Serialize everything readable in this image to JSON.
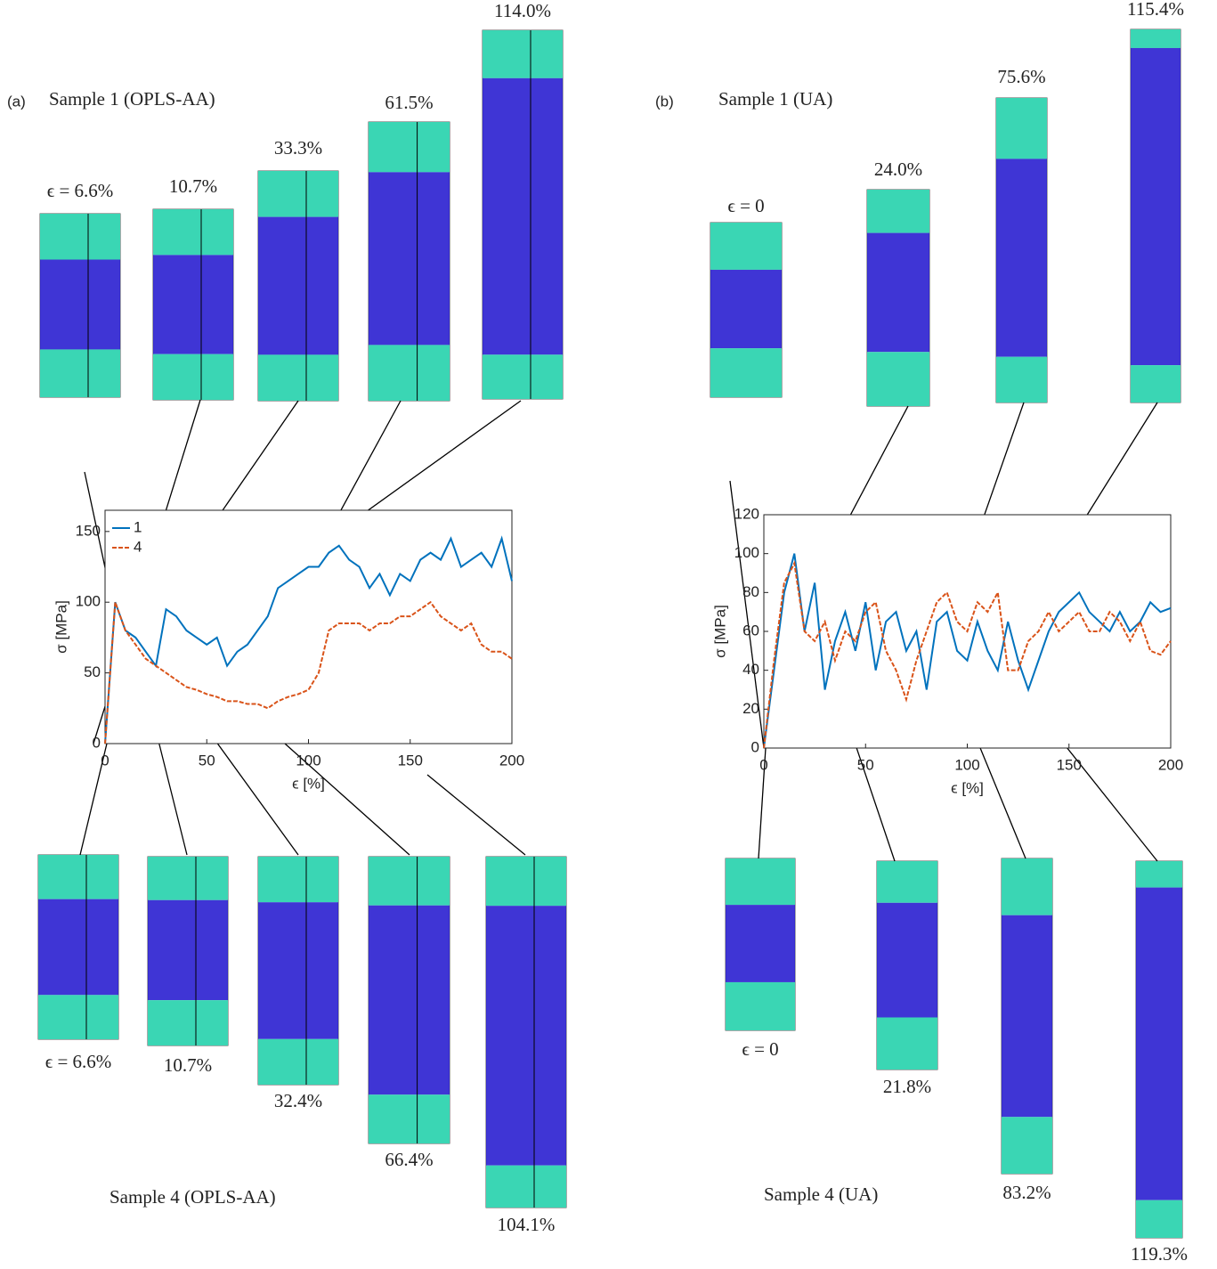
{
  "chart_data": [
    {
      "type": "line",
      "x_label": "ϵ [%]",
      "y_label": "σ [MPa]",
      "x": [
        0,
        5,
        10,
        15,
        20,
        25,
        30,
        35,
        40,
        45,
        50,
        55,
        60,
        65,
        70,
        75,
        80,
        85,
        90,
        95,
        100,
        105,
        110,
        115,
        120,
        125,
        130,
        135,
        140,
        145,
        150,
        155,
        160,
        165,
        170,
        175,
        180,
        185,
        190,
        195,
        200
      ],
      "series": [
        {
          "name": "1",
          "color": "#0072bd",
          "dash": false,
          "values": [
            0,
            100,
            80,
            75,
            65,
            55,
            95,
            90,
            80,
            75,
            70,
            75,
            55,
            65,
            70,
            80,
            90,
            110,
            115,
            120,
            125,
            125,
            135,
            140,
            130,
            125,
            110,
            120,
            105,
            120,
            115,
            130,
            135,
            130,
            145,
            125,
            130,
            135,
            125,
            145,
            115
          ]
        },
        {
          "name": "4",
          "color": "#d95319",
          "dash": true,
          "values": [
            0,
            100,
            80,
            70,
            60,
            55,
            50,
            45,
            40,
            38,
            35,
            33,
            30,
            30,
            28,
            28,
            25,
            30,
            33,
            35,
            38,
            50,
            80,
            85,
            85,
            85,
            80,
            85,
            85,
            90,
            90,
            95,
            100,
            90,
            85,
            80,
            85,
            70,
            65,
            65,
            60
          ]
        }
      ],
      "xlim": [
        0,
        200
      ],
      "xticks": [
        0,
        50,
        100,
        150,
        200
      ],
      "ylim": [
        0,
        165
      ],
      "yticks": [
        0,
        50,
        100,
        150
      ],
      "legend": "upper left"
    },
    {
      "type": "line",
      "x_label": "ϵ [%]",
      "y_label": "σ [MPa]",
      "x": [
        0,
        5,
        10,
        15,
        20,
        25,
        30,
        35,
        40,
        45,
        50,
        55,
        60,
        65,
        70,
        75,
        80,
        85,
        90,
        95,
        100,
        105,
        110,
        115,
        120,
        125,
        130,
        135,
        140,
        145,
        150,
        155,
        160,
        165,
        170,
        175,
        180,
        185,
        190,
        195,
        200
      ],
      "series": [
        {
          "color": "#0072bd",
          "dash": false,
          "values": [
            0,
            40,
            80,
            100,
            60,
            85,
            30,
            55,
            70,
            50,
            75,
            40,
            65,
            70,
            50,
            60,
            30,
            65,
            70,
            50,
            45,
            65,
            50,
            40,
            65,
            45,
            30,
            45,
            60,
            70,
            75,
            80,
            70,
            65,
            60,
            70,
            60,
            65,
            75,
            70,
            72
          ]
        },
        {
          "color": "#d95319",
          "dash": true,
          "values": [
            0,
            45,
            85,
            95,
            60,
            55,
            65,
            45,
            60,
            55,
            70,
            75,
            50,
            40,
            25,
            45,
            60,
            75,
            80,
            65,
            60,
            75,
            70,
            80,
            40,
            40,
            55,
            60,
            70,
            60,
            65,
            70,
            60,
            60,
            70,
            65,
            55,
            65,
            50,
            48,
            55
          ]
        }
      ],
      "xlim": [
        0,
        200
      ],
      "xticks": [
        0,
        50,
        100,
        150,
        200
      ],
      "ylim": [
        0,
        120
      ],
      "yticks": [
        0,
        20,
        40,
        60,
        80,
        100,
        120
      ]
    }
  ],
  "panels": [
    {
      "label": "(a)",
      "top_title": "Sample 1 (OPLS-AA)",
      "bottom_title": "Sample 4 (OPLS-AA)",
      "top_snapshots": [
        "ϵ = 6.6%",
        "10.7%",
        "33.3%",
        "61.5%",
        "114.0%"
      ],
      "bottom_snapshots": [
        "ϵ = 6.6%",
        "10.7%",
        "32.4%",
        "66.4%",
        "104.1%"
      ]
    },
    {
      "label": "(b)",
      "top_title": "Sample 1 (UA)",
      "bottom_title": "Sample 4 (UA)",
      "top_snapshots": [
        "ϵ = 0",
        "24.0%",
        "75.6%",
        "115.4%"
      ],
      "bottom_snapshots": [
        "ϵ = 0",
        "21.8%",
        "83.2%",
        "119.3%"
      ]
    }
  ]
}
